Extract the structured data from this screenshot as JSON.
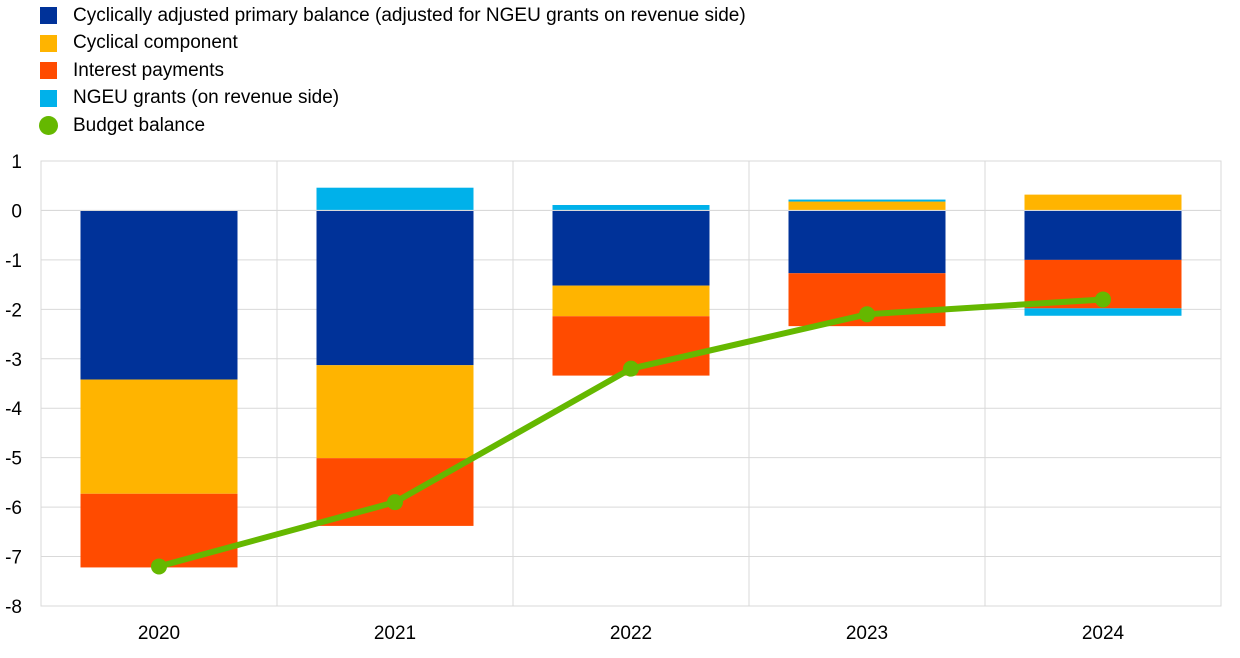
{
  "chart_data": {
    "type": "bar",
    "stacked": true,
    "categories": [
      "2020",
      "2021",
      "2022",
      "2023",
      "2024"
    ],
    "ylim": [
      -8,
      1
    ],
    "yticks": [
      1,
      0,
      -1,
      -2,
      -3,
      -4,
      -5,
      -6,
      -7,
      -8
    ],
    "ytick_labels": [
      "1",
      "0",
      "-1",
      "-2",
      "-3",
      "-4",
      "-5",
      "-6",
      "-7",
      "-8"
    ],
    "grid": true,
    "legend_position": "top-left",
    "series": [
      {
        "name": "Cyclically adjusted primary balance (adjusted for NGEU grants on revenue side)",
        "kind": "bar",
        "color": "#003299",
        "values": [
          -3.42,
          -3.13,
          -1.52,
          -1.27,
          -1.0
        ]
      },
      {
        "name": "Cyclical component",
        "kind": "bar",
        "color": "#FFB400",
        "values": [
          -2.31,
          -1.88,
          -0.62,
          0.18,
          0.32
        ]
      },
      {
        "name": "Interest payments",
        "kind": "bar",
        "color": "#FF4B00",
        "values": [
          -1.49,
          -1.37,
          -1.2,
          -1.07,
          -0.98
        ]
      },
      {
        "name": "NGEU grants (on revenue side)",
        "kind": "bar",
        "color": "#00B1EA",
        "values": [
          0.0,
          0.46,
          0.11,
          0.04,
          -0.15
        ]
      },
      {
        "name": "Budget balance",
        "kind": "line",
        "color": "#65B800",
        "values": [
          -7.2,
          -5.9,
          -3.2,
          -2.1,
          -1.8
        ]
      }
    ]
  }
}
